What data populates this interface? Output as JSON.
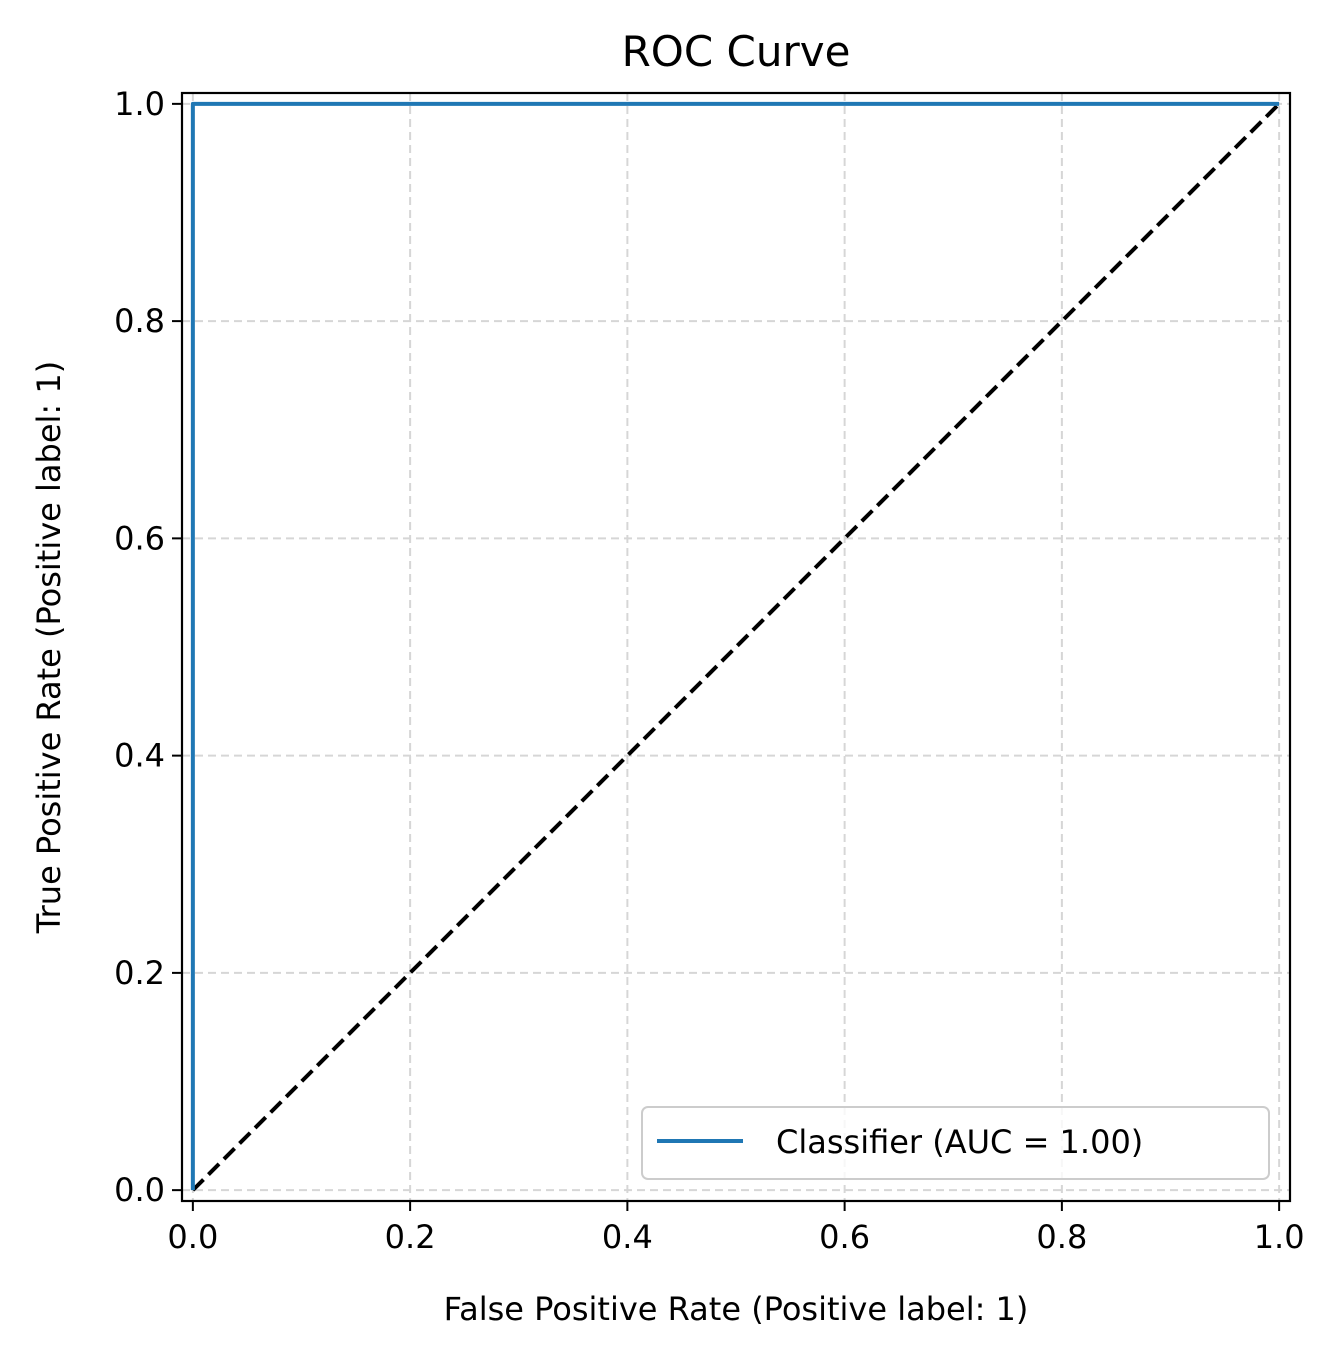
{
  "chart_data": {
    "type": "line",
    "title": "ROC Curve",
    "xlabel": "False Positive Rate (Positive label: 1)",
    "ylabel": "True Positive Rate (Positive label: 1)",
    "xlim": [
      -0.01,
      1.01
    ],
    "ylim": [
      -0.01,
      1.01
    ],
    "xticks": [
      0.0,
      0.2,
      0.4,
      0.6,
      0.8,
      1.0
    ],
    "xtick_labels": [
      "0.0",
      "0.2",
      "0.4",
      "0.6",
      "0.8",
      "1.0"
    ],
    "yticks": [
      0.0,
      0.2,
      0.4,
      0.6,
      0.8,
      1.0
    ],
    "ytick_labels": [
      "0.0",
      "0.2",
      "0.4",
      "0.6",
      "0.8",
      "1.0"
    ],
    "grid": true,
    "legend_position": "lower-right",
    "series": [
      {
        "name": "Classifier (AUC = 1.00)",
        "color": "#1f77b4",
        "line_style": "solid",
        "x": [
          0.0,
          0.0,
          1.0
        ],
        "y": [
          0.0,
          1.0,
          1.0
        ]
      },
      {
        "color": "#000000",
        "line_style": "dashed",
        "x": [
          0.0,
          1.0
        ],
        "y": [
          0.0,
          1.0
        ]
      }
    ]
  }
}
